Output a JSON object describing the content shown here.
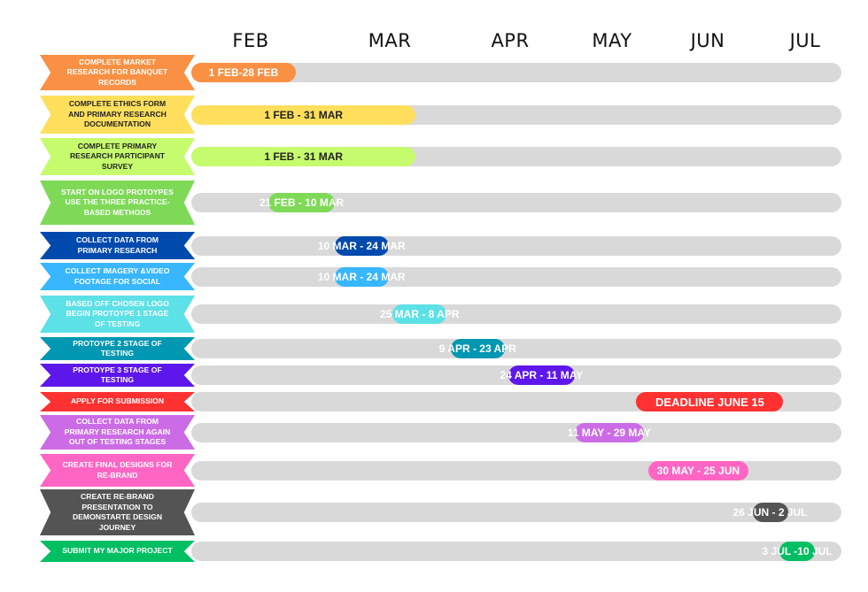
{
  "chart_data": {
    "type": "gantt",
    "months": [
      "FEB",
      "MAR",
      "APR",
      "MAY",
      "JUN",
      "JUL"
    ],
    "tasks": [
      {
        "task": "COMPLETE MARKET RESEARCH FOR BANQUET RECORDS",
        "label": "1 FEB-28 FEB",
        "start": "02-01",
        "end": "02-28",
        "color": "#f99044",
        "label_color": "#f99044",
        "text_color": "#ffffff"
      },
      {
        "task": "COMPLETE ETHICS FORM AND PRIMARY RESEARCH DOCUMENTATION",
        "label": "1 FEB - 31 MAR",
        "start": "02-01",
        "end": "03-31",
        "color": "#ffdf5c",
        "label_color": "#ffdf5c",
        "text_color": "#222222"
      },
      {
        "task": "COMPLETE PRIMARY RESEARCH PARTICIPANT SURVEY",
        "label": "1 FEB - 31 MAR",
        "start": "02-01",
        "end": "03-31",
        "color": "#c6fb6e",
        "label_color": "#c6fb6e",
        "text_color": "#222222"
      },
      {
        "task": "START ON LOGO PROTOYPES USE THE THREE PRACTICE-BASED METHODS",
        "label": "21 FEB - 10 MAR",
        "start": "02-21",
        "end": "03-10",
        "color": "#7ed957",
        "label_color": "#7ed957",
        "text_color": "#ffffff"
      },
      {
        "task": "COLLECT DATA FROM PRIMARY RESEARCH",
        "label": "10 MAR - 24 MAR",
        "start": "03-10",
        "end": "03-24",
        "color": "#004aad",
        "label_color": "#004aad",
        "text_color": "#ffffff"
      },
      {
        "task": "COLLECT IMAGERY &VIDEO FOOTAGE FOR SOCIAL",
        "label": "10 MAR - 24 MAR",
        "start": "03-10",
        "end": "03-24",
        "color": "#38b6ff",
        "label_color": "#38b6ff",
        "text_color": "#ffffff"
      },
      {
        "task": "BASED OFF CHOSEN LOGO BEGIN PROTOYPE 1 STAGE OF TESTING",
        "label": "25 MAR - 8 APR",
        "start": "03-25",
        "end": "04-08",
        "color": "#5ce1e6",
        "label_color": "#5ce1e6",
        "text_color": "#ffffff"
      },
      {
        "task": "PROTOYPE 2 STAGE OF TESTING",
        "label": "9 APR - 23 APR",
        "start": "04-09",
        "end": "04-23",
        "color": "#0097b2",
        "label_color": "#0097b2",
        "text_color": "#ffffff"
      },
      {
        "task": "PROTOYPE 3 STAGE OF TESTING",
        "label": "24 APR - 11 MAY",
        "start": "04-24",
        "end": "05-11",
        "color": "#5e17eb",
        "label_color": "#5e17eb",
        "text_color": "#ffffff"
      },
      {
        "task": "APPLY FOR SUBMISSION",
        "label": "DEADLINE JUNE 15",
        "start": "05-27",
        "end": "07-04",
        "color": "#ff3131",
        "label_color": "#ff3131",
        "text_color": "#ffffff"
      },
      {
        "task": "COLLECT DATA FROM PRIMARY RESEARCH AGAIN OUT OF TESTING STAGES",
        "label": "11 MAY - 29 MAY",
        "start": "05-11",
        "end": "05-29",
        "color": "#cb6ce6",
        "label_color": "#cb6ce6",
        "text_color": "#ffffff"
      },
      {
        "task": "CREATE FINAL DESIGNS FOR RE-BRAND",
        "label": "30 MAY - 25 JUN",
        "start": "05-30",
        "end": "06-25",
        "color": "#ff66c4",
        "label_color": "#ff66c4",
        "text_color": "#ffffff"
      },
      {
        "task": "CREATE RE-BRAND PRESENTATION TO DEMONSTARTE DESIGN JOURNEY",
        "label": "26 JUN - 2 JUL",
        "start": "06-26",
        "end": "07-02",
        "color": "#545454",
        "label_color": "#545454",
        "text_color": "#ffffff"
      },
      {
        "task": "SUBMIT MY MAJOR PROJECT",
        "label": "3 JUL -10 JUL",
        "start": "07-03",
        "end": "07-10",
        "color": "#00bf63",
        "label_color": "#00bf63",
        "text_color": "#ffffff"
      }
    ]
  }
}
